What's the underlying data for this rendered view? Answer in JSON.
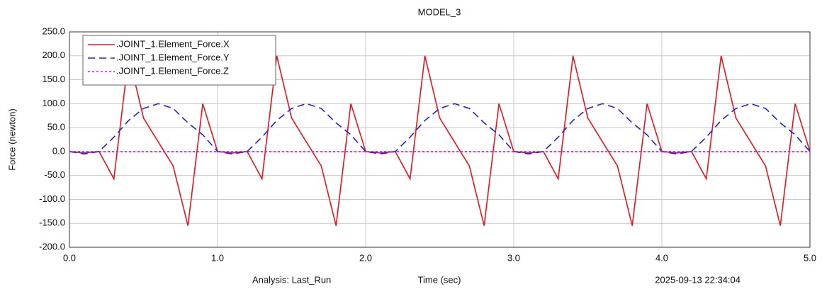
{
  "chart_data": {
    "type": "line",
    "title": "MODEL_3",
    "y_label": "Force (newton)",
    "x_label": "Time (sec)",
    "analysis": "Analysis:  Last_Run",
    "timestamp": "2025-09-13 22:34:04",
    "x": [
      0,
      0.1,
      0.2,
      0.3,
      0.4,
      0.5,
      0.6,
      0.7,
      0.8,
      0.9,
      1.0,
      1.1,
      1.2,
      1.3,
      1.4,
      1.5,
      1.6,
      1.7,
      1.8,
      1.9,
      2.0,
      2.1,
      2.2,
      2.3,
      2.4,
      2.5,
      2.6,
      2.7,
      2.8,
      2.9,
      3.0,
      3.1,
      3.2,
      3.3,
      3.4,
      3.5,
      3.6,
      3.7,
      3.8,
      3.9,
      4.0,
      4.1,
      4.2,
      4.3,
      4.4,
      4.5,
      4.6,
      4.7,
      4.8,
      4.9,
      5.0
    ],
    "series": [
      {
        "name": ".JOINT_1.Element_Force.X",
        "color": "#e8141c",
        "dash": "none",
        "values": [
          0,
          -3,
          0,
          -57,
          200,
          70,
          20,
          -30,
          -155,
          100,
          0,
          -3,
          0,
          -57,
          200,
          70,
          20,
          -30,
          -155,
          100,
          0,
          -3,
          0,
          -57,
          200,
          70,
          20,
          -30,
          -155,
          100,
          0,
          -3,
          0,
          -57,
          200,
          70,
          20,
          -30,
          -155,
          100,
          0,
          -3,
          0,
          -57,
          200,
          70,
          20,
          -30,
          -155,
          100,
          0
        ]
      },
      {
        "name": ".JOINT_1.Element_Force.Y",
        "color": "#2222dd",
        "dash": "10 6",
        "values": [
          0,
          -5,
          0,
          30,
          65,
          90,
          100,
          90,
          60,
          35,
          0,
          -5,
          0,
          30,
          65,
          90,
          100,
          90,
          60,
          35,
          0,
          -5,
          0,
          30,
          65,
          90,
          100,
          90,
          60,
          35,
          0,
          -5,
          0,
          30,
          65,
          90,
          100,
          90,
          60,
          35,
          0,
          -5,
          0,
          30,
          65,
          90,
          100,
          90,
          60,
          35,
          0
        ]
      },
      {
        "name": ".JOINT_1.Element_Force.Z",
        "color": "#cc22cc",
        "dash": "3 3",
        "values": [
          0,
          0,
          0,
          0,
          0,
          0,
          0,
          0,
          0,
          0,
          0,
          0,
          0,
          0,
          0,
          0,
          0,
          0,
          0,
          0,
          0,
          0,
          0,
          0,
          0,
          0,
          0,
          0,
          0,
          0,
          0,
          0,
          0,
          0,
          0,
          0,
          0,
          0,
          0,
          0,
          0,
          0,
          0,
          0,
          0,
          0,
          0,
          0,
          0,
          0,
          0
        ]
      }
    ],
    "xlim": [
      0,
      5
    ],
    "ylim": [
      -200,
      250
    ],
    "xticks": [
      {
        "value": 0,
        "label": "0.0"
      },
      {
        "value": 1,
        "label": "1.0"
      },
      {
        "value": 2,
        "label": "2.0"
      },
      {
        "value": 3,
        "label": "3.0"
      },
      {
        "value": 4,
        "label": "4.0"
      },
      {
        "value": 5,
        "label": "5.0"
      }
    ],
    "yticks": [
      {
        "value": -200,
        "label": "-200.0"
      },
      {
        "value": -150,
        "label": "-150.0"
      },
      {
        "value": -100,
        "label": "-100.0"
      },
      {
        "value": -50,
        "label": "-50.0"
      },
      {
        "value": 0,
        "label": "0.0"
      },
      {
        "value": 50,
        "label": "50.0"
      },
      {
        "value": 100,
        "label": "100.0"
      },
      {
        "value": 150,
        "label": "150.0"
      },
      {
        "value": 200,
        "label": "200.0"
      },
      {
        "value": 250,
        "label": "250.0"
      }
    ],
    "grid": true,
    "legend": "top-left"
  }
}
